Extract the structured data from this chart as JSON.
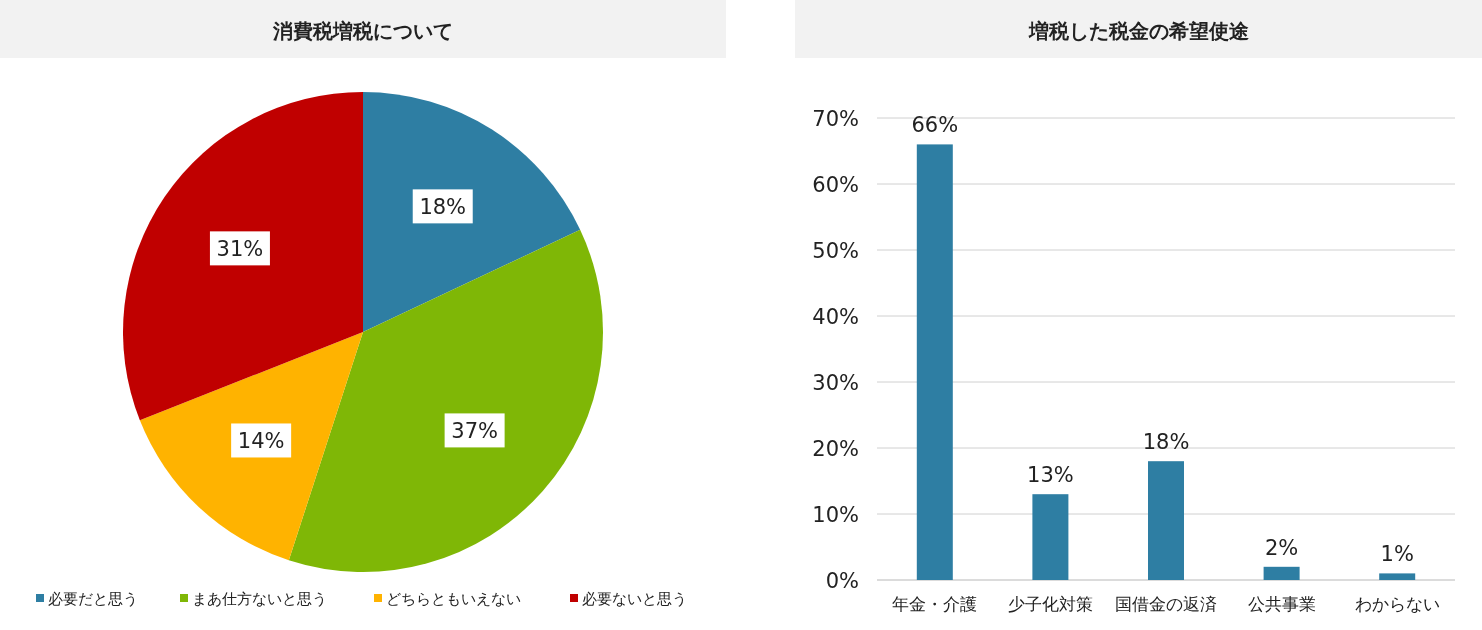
{
  "chart_data": [
    {
      "type": "pie",
      "title": "消費税増税について",
      "categories": [
        "必要だと思う",
        "まあ仕方ないと思う",
        "どちらともいえない",
        "必要ないと思う"
      ],
      "values": [
        18,
        37,
        14,
        31
      ],
      "colors": [
        "#2e7ea3",
        "#7fb706",
        "#ffb300",
        "#c00000"
      ],
      "value_labels": [
        "18%",
        "37%",
        "14%",
        "31%"
      ],
      "legend": "bottom"
    },
    {
      "type": "bar",
      "title": "増税した税金の希望使途",
      "categories": [
        "年金・介護",
        "少子化対策",
        "国借金の返済",
        "公共事業",
        "わからない"
      ],
      "values": [
        66,
        13,
        18,
        2,
        1
      ],
      "color": "#2e7ea3",
      "value_labels": [
        "66%",
        "13%",
        "18%",
        "2%",
        "1%"
      ],
      "ylim": [
        0,
        70
      ],
      "yticks": [
        {
          "value": 0,
          "label": "0%"
        },
        {
          "value": 10,
          "label": "10%"
        },
        {
          "value": 20,
          "label": "20%"
        },
        {
          "value": 30,
          "label": "30%"
        },
        {
          "value": 40,
          "label": "40%"
        },
        {
          "value": 50,
          "label": "50%"
        },
        {
          "value": 60,
          "label": "60%"
        },
        {
          "value": 70,
          "label": "70%"
        }
      ],
      "grid": "y"
    }
  ]
}
